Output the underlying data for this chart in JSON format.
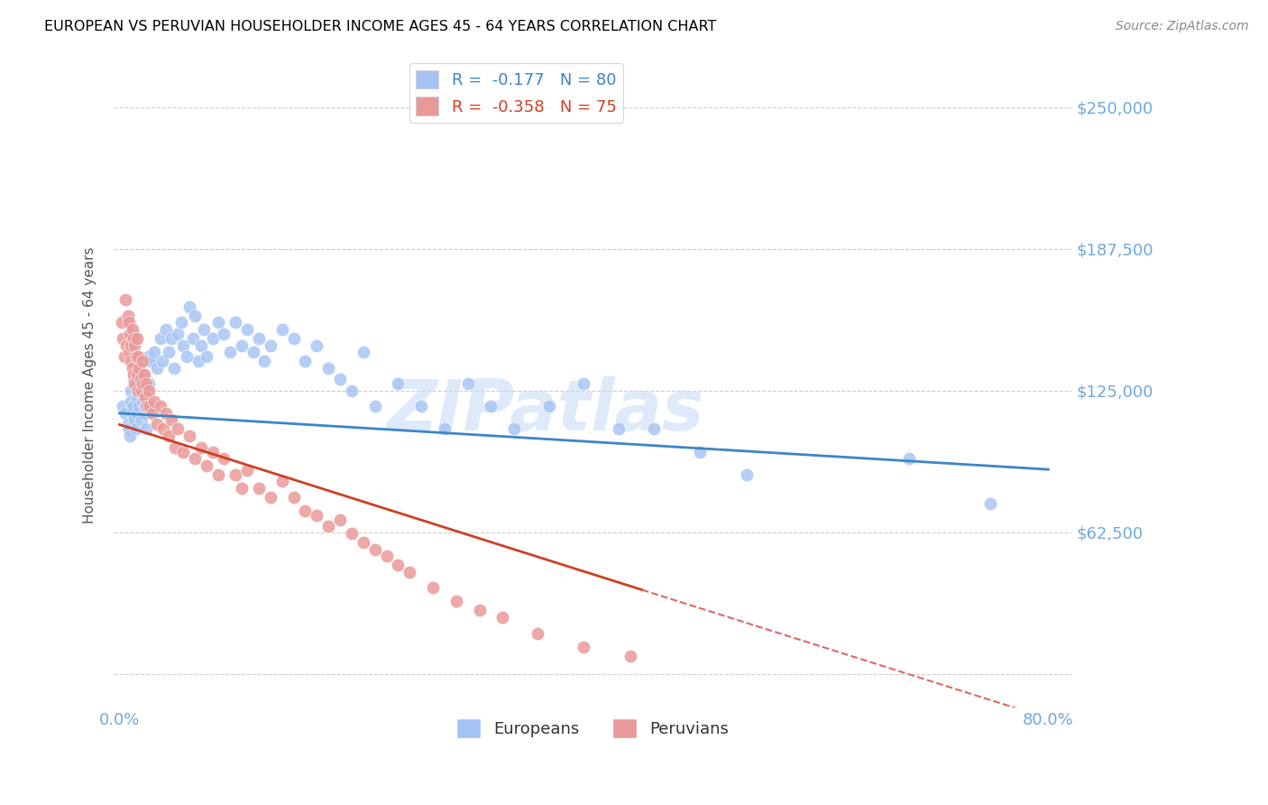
{
  "title": "EUROPEAN VS PERUVIAN HOUSEHOLDER INCOME AGES 45 - 64 YEARS CORRELATION CHART",
  "source": "Source: ZipAtlas.com",
  "ylabel": "Householder Income Ages 45 - 64 years",
  "watermark": "ZIPatlas",
  "yticks": [
    0,
    62500,
    125000,
    187500,
    250000
  ],
  "ytick_labels": [
    "",
    "$62,500",
    "$125,000",
    "$187,500",
    "$250,000"
  ],
  "xlim": [
    -0.005,
    0.82
  ],
  "ylim": [
    -15000,
    270000
  ],
  "european_color": "#a4c2f4",
  "peruvian_color": "#ea9999",
  "european_line_color": "#3d85c8",
  "peruvian_line_color": "#cc4125",
  "peruvian_line_dashed_color": "#e06666",
  "r_european": -0.177,
  "n_european": 80,
  "r_peruvian": -0.358,
  "n_peruvian": 75,
  "axis_label_color": "#6fa8dc",
  "title_color": "#000000",
  "grid_color": "#cccccc",
  "background_color": "#ffffff",
  "europeans_x": [
    0.003,
    0.005,
    0.007,
    0.008,
    0.009,
    0.01,
    0.01,
    0.011,
    0.012,
    0.012,
    0.013,
    0.014,
    0.015,
    0.015,
    0.016,
    0.017,
    0.018,
    0.019,
    0.02,
    0.02,
    0.021,
    0.022,
    0.023,
    0.025,
    0.025,
    0.027,
    0.028,
    0.03,
    0.032,
    0.035,
    0.037,
    0.04,
    0.042,
    0.045,
    0.047,
    0.05,
    0.053,
    0.055,
    0.058,
    0.06,
    0.063,
    0.065,
    0.068,
    0.07,
    0.073,
    0.075,
    0.08,
    0.085,
    0.09,
    0.095,
    0.1,
    0.105,
    0.11,
    0.115,
    0.12,
    0.125,
    0.13,
    0.14,
    0.15,
    0.16,
    0.17,
    0.18,
    0.19,
    0.2,
    0.21,
    0.22,
    0.24,
    0.26,
    0.28,
    0.3,
    0.32,
    0.34,
    0.37,
    0.4,
    0.43,
    0.46,
    0.5,
    0.54,
    0.68,
    0.75
  ],
  "europeans_y": [
    118000,
    115000,
    110000,
    108000,
    105000,
    125000,
    120000,
    115000,
    130000,
    118000,
    112000,
    108000,
    122000,
    115000,
    125000,
    118000,
    128000,
    112000,
    132000,
    120000,
    115000,
    118000,
    108000,
    140000,
    128000,
    138000,
    118000,
    142000,
    135000,
    148000,
    138000,
    152000,
    142000,
    148000,
    135000,
    150000,
    155000,
    145000,
    140000,
    162000,
    148000,
    158000,
    138000,
    145000,
    152000,
    140000,
    148000,
    155000,
    150000,
    142000,
    155000,
    145000,
    152000,
    142000,
    148000,
    138000,
    145000,
    152000,
    148000,
    138000,
    145000,
    135000,
    130000,
    125000,
    142000,
    118000,
    128000,
    118000,
    108000,
    128000,
    118000,
    108000,
    118000,
    128000,
    108000,
    108000,
    98000,
    88000,
    95000,
    75000
  ],
  "peruvians_x": [
    0.002,
    0.003,
    0.004,
    0.005,
    0.006,
    0.007,
    0.008,
    0.008,
    0.009,
    0.01,
    0.01,
    0.011,
    0.011,
    0.012,
    0.012,
    0.013,
    0.013,
    0.014,
    0.015,
    0.015,
    0.016,
    0.016,
    0.017,
    0.018,
    0.019,
    0.02,
    0.02,
    0.021,
    0.022,
    0.023,
    0.024,
    0.025,
    0.026,
    0.028,
    0.03,
    0.032,
    0.035,
    0.038,
    0.04,
    0.042,
    0.045,
    0.048,
    0.05,
    0.055,
    0.06,
    0.065,
    0.07,
    0.075,
    0.08,
    0.085,
    0.09,
    0.1,
    0.105,
    0.11,
    0.12,
    0.13,
    0.14,
    0.15,
    0.16,
    0.17,
    0.18,
    0.19,
    0.2,
    0.21,
    0.22,
    0.23,
    0.24,
    0.25,
    0.27,
    0.29,
    0.31,
    0.33,
    0.36,
    0.4,
    0.44
  ],
  "peruvians_y": [
    155000,
    148000,
    140000,
    165000,
    145000,
    158000,
    155000,
    142000,
    150000,
    145000,
    138000,
    152000,
    135000,
    148000,
    132000,
    145000,
    128000,
    140000,
    148000,
    132000,
    140000,
    125000,
    135000,
    130000,
    125000,
    138000,
    128000,
    132000,
    122000,
    128000,
    118000,
    125000,
    118000,
    115000,
    120000,
    110000,
    118000,
    108000,
    115000,
    105000,
    112000,
    100000,
    108000,
    98000,
    105000,
    95000,
    100000,
    92000,
    98000,
    88000,
    95000,
    88000,
    82000,
    90000,
    82000,
    78000,
    85000,
    78000,
    72000,
    70000,
    65000,
    68000,
    62000,
    58000,
    55000,
    52000,
    48000,
    45000,
    38000,
    32000,
    28000,
    25000,
    18000,
    12000,
    8000
  ]
}
